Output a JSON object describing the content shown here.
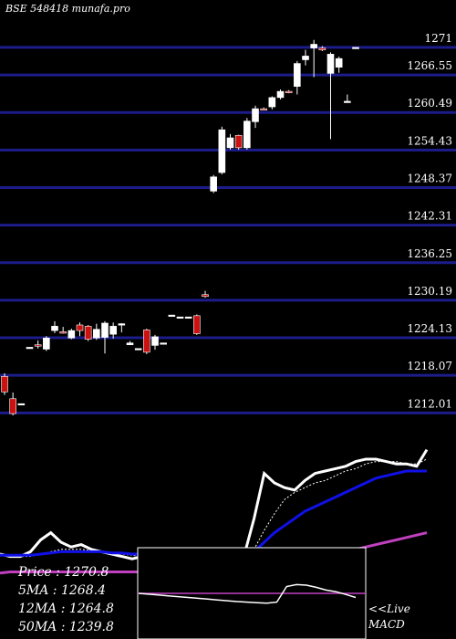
{
  "header": {
    "source": "BSE 548418 munafa.pro"
  },
  "chart_data": {
    "type": "candlestick",
    "y_ticks": [
      1271,
      1266.55,
      1260.49,
      1254.43,
      1248.37,
      1242.31,
      1236.25,
      1230.19,
      1224.13,
      1218.07,
      1212.01
    ],
    "ylim": [
      1209.7,
      1275.7
    ],
    "candles": [
      {
        "o": 1215.4,
        "c": 1217.9,
        "h": 1218.4,
        "l": 1214.9,
        "color": "red"
      },
      {
        "o": 1211.9,
        "c": 1214.3,
        "h": 1215.3,
        "l": 1211.6,
        "color": "red"
      },
      {
        "o": 1213.5,
        "c": 1213.5,
        "h": 1213.5,
        "l": 1213.5,
        "color": "white"
      },
      {
        "o": 1222.6,
        "c": 1222.6,
        "h": 1222.6,
        "l": 1222.6,
        "color": "white"
      },
      {
        "o": 1223.0,
        "c": 1223.0,
        "h": 1223.7,
        "l": 1222.4,
        "color": "red"
      },
      {
        "o": 1222.3,
        "c": 1224.1,
        "h": 1224.4,
        "l": 1222.0,
        "color": "white"
      },
      {
        "o": 1225.3,
        "c": 1226.0,
        "h": 1226.8,
        "l": 1224.9,
        "color": "white"
      },
      {
        "o": 1225.1,
        "c": 1225.1,
        "h": 1225.9,
        "l": 1224.8,
        "color": "red"
      },
      {
        "o": 1224.1,
        "c": 1225.3,
        "h": 1225.6,
        "l": 1223.9,
        "color": "white"
      },
      {
        "o": 1225.3,
        "c": 1226.2,
        "h": 1226.6,
        "l": 1224.4,
        "color": "red"
      },
      {
        "o": 1226.0,
        "c": 1223.9,
        "h": 1226.2,
        "l": 1223.6,
        "color": "red"
      },
      {
        "o": 1224.1,
        "c": 1225.5,
        "h": 1226.4,
        "l": 1223.8,
        "color": "white"
      },
      {
        "o": 1224.2,
        "c": 1226.5,
        "h": 1226.8,
        "l": 1221.6,
        "color": "white"
      },
      {
        "o": 1224.7,
        "c": 1226.0,
        "h": 1226.6,
        "l": 1224.0,
        "color": "white"
      },
      {
        "o": 1226.4,
        "c": 1226.4,
        "h": 1226.5,
        "l": 1225.0,
        "color": "white"
      },
      {
        "o": 1223.0,
        "c": 1223.3,
        "h": 1223.6,
        "l": 1223.0,
        "color": "white"
      },
      {
        "o": 1222.4,
        "c": 1222.4,
        "h": 1222.4,
        "l": 1222.4,
        "color": "white"
      },
      {
        "o": 1221.8,
        "c": 1225.4,
        "h": 1225.6,
        "l": 1221.5,
        "color": "red"
      },
      {
        "o": 1222.9,
        "c": 1224.3,
        "h": 1224.6,
        "l": 1222.2,
        "color": "white"
      },
      {
        "o": 1223.3,
        "c": 1223.3,
        "h": 1223.3,
        "l": 1223.3,
        "color": "white"
      },
      {
        "o": 1227.8,
        "c": 1227.8,
        "h": 1227.8,
        "l": 1227.8,
        "color": "white"
      },
      {
        "o": 1227.5,
        "c": 1227.5,
        "h": 1227.5,
        "l": 1227.5,
        "color": "white"
      },
      {
        "o": 1227.5,
        "c": 1227.5,
        "h": 1227.5,
        "l": 1227.5,
        "color": "white"
      },
      {
        "o": 1227.7,
        "c": 1224.8,
        "h": 1227.9,
        "l": 1224.6,
        "color": "red"
      },
      {
        "o": 1231.1,
        "c": 1230.8,
        "h": 1231.7,
        "l": 1230.6,
        "color": "red"
      },
      {
        "o": 1247.8,
        "c": 1250.1,
        "h": 1250.4,
        "l": 1247.5,
        "color": "white"
      },
      {
        "o": 1250.8,
        "c": 1257.7,
        "h": 1258.2,
        "l": 1250.5,
        "color": "white"
      },
      {
        "o": 1254.8,
        "c": 1256.4,
        "h": 1257.0,
        "l": 1254.5,
        "color": "white"
      },
      {
        "o": 1254.8,
        "c": 1256.8,
        "h": 1256.9,
        "l": 1254.5,
        "color": "red"
      },
      {
        "o": 1254.8,
        "c": 1259.1,
        "h": 1259.6,
        "l": 1254.5,
        "color": "white"
      },
      {
        "o": 1259.0,
        "c": 1261.1,
        "h": 1261.6,
        "l": 1258.0,
        "color": "white"
      },
      {
        "o": 1261.1,
        "c": 1261.1,
        "h": 1261.3,
        "l": 1260.9,
        "color": "red"
      },
      {
        "o": 1261.4,
        "c": 1262.9,
        "h": 1263.1,
        "l": 1261.0,
        "color": "white"
      },
      {
        "o": 1262.9,
        "c": 1263.9,
        "h": 1264.2,
        "l": 1262.6,
        "color": "white"
      },
      {
        "o": 1263.9,
        "c": 1263.9,
        "h": 1264.1,
        "l": 1263.6,
        "color": "red"
      },
      {
        "o": 1264.7,
        "c": 1268.4,
        "h": 1268.8,
        "l": 1263.4,
        "color": "white"
      },
      {
        "o": 1269.0,
        "c": 1269.6,
        "h": 1270.6,
        "l": 1268.1,
        "color": "white"
      },
      {
        "o": 1270.9,
        "c": 1271.5,
        "h": 1272.2,
        "l": 1266.2,
        "color": "white"
      },
      {
        "o": 1270.9,
        "c": 1270.6,
        "h": 1271.2,
        "l": 1270.4,
        "color": "red"
      },
      {
        "o": 1266.8,
        "c": 1269.9,
        "h": 1270.2,
        "l": 1256.2,
        "color": "white"
      },
      {
        "o": 1267.8,
        "c": 1269.2,
        "h": 1269.5,
        "l": 1266.9,
        "color": "white"
      },
      {
        "o": 1262.3,
        "c": 1262.3,
        "h": 1263.4,
        "l": 1262.3,
        "color": "white"
      },
      {
        "o": 1271.0,
        "c": 1271.0,
        "h": 1271.0,
        "l": 1271.0,
        "color": "white"
      }
    ],
    "indicator_lines": [
      {
        "name": "price",
        "color": "#ffffff",
        "width": 3,
        "values": [
          10,
          8,
          8,
          12,
          22,
          28,
          20,
          16,
          18,
          14,
          12,
          10,
          8,
          6,
          8,
          10,
          10,
          8,
          7,
          6,
          4,
          5,
          3,
          6,
          8,
          40,
          78,
          70,
          66,
          64,
          72,
          78,
          80,
          82,
          84,
          88,
          90,
          90,
          88,
          86,
          86,
          84,
          98
        ]
      },
      {
        "name": "5ma",
        "color": "#ffffff",
        "width": 1,
        "dash": true,
        "values": [
          9,
          9,
          8,
          8,
          10,
          12,
          14,
          14,
          14,
          13,
          12,
          11,
          10,
          9,
          8,
          8,
          8,
          8,
          7,
          7,
          6,
          6,
          5,
          5,
          6,
          14,
          30,
          44,
          56,
          62,
          66,
          70,
          72,
          76,
          80,
          82,
          86,
          88,
          88,
          88,
          86,
          86,
          90
        ]
      },
      {
        "name": "12ma",
        "color": "#1010e8",
        "width": 3,
        "values": [
          9,
          9,
          9,
          9,
          10,
          11,
          12,
          12,
          12,
          12,
          12,
          11,
          11,
          10,
          10,
          9,
          9,
          8,
          8,
          7,
          7,
          6,
          6,
          6,
          6,
          12,
          20,
          28,
          34,
          40,
          46,
          50,
          54,
          58,
          62,
          66,
          70,
          74,
          76,
          78,
          80,
          80,
          80
        ]
      },
      {
        "name": "50ma",
        "color": "#c040c0",
        "width": 3,
        "values": [
          -6,
          -5,
          -5,
          -5,
          -5,
          -5,
          -5,
          -5,
          -5,
          -5,
          -5,
          -5,
          -5,
          -5,
          -5,
          -5,
          -5,
          -5,
          -5,
          -5,
          -5,
          -5,
          -5,
          -5,
          -4,
          -3,
          -2,
          -1,
          0,
          2,
          4,
          6,
          8,
          10,
          12,
          14,
          16,
          18,
          20,
          22,
          24,
          26,
          28
        ]
      }
    ],
    "macd_line": [
      0,
      -0.3,
      -0.6,
      -0.9,
      -1.2,
      -1.5,
      -1.8,
      -2.1,
      -2.4,
      -2.7,
      -3.0,
      -3.2,
      -3.4,
      -3.6,
      -3.2,
      2.5,
      3.2,
      3.0,
      2.2,
      1.2,
      0.6,
      -0.4,
      -1.5
    ]
  },
  "legend": {
    "price": "Price   : 1270.8",
    "ma5": "5MA : 1268.4",
    "ma12": "12MA : 1264.8",
    "ma50": "50MA : 1239.8"
  },
  "macd_tag": {
    "line1": "<<Live",
    "line2": "MACD"
  }
}
